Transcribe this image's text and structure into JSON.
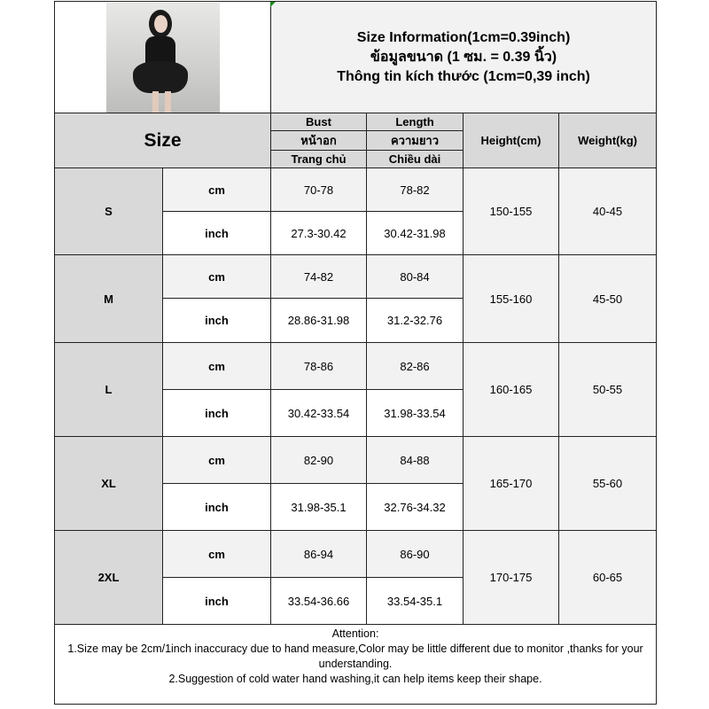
{
  "header": {
    "title_en": "Size Information(1cm=0.39inch)",
    "title_th": "ข้อมูลขนาด (1 ซม. = 0.39 นิ้ว)",
    "title_vi": "Thông tin kích thước (1cm=0,39 inch)"
  },
  "columns": {
    "size": "Size",
    "bust": [
      "Bust",
      "หน้าอก",
      "Trang chủ"
    ],
    "length": [
      "Length",
      "ความยาว",
      "Chiều dài"
    ],
    "height": "Height(cm)",
    "weight": "Weight(kg)"
  },
  "rows": [
    {
      "size": "S",
      "cm_label": "cm",
      "inch_label": "inch",
      "bust_cm": "70-78",
      "length_cm": "78-82",
      "bust_inch": "27.3-30.42",
      "length_inch": "30.42-31.98",
      "height": "150-155",
      "weight": "40-45"
    },
    {
      "size": "M",
      "cm_label": "cm",
      "inch_label": "inch",
      "bust_cm": "74-82",
      "length_cm": "80-84",
      "bust_inch": "28.86-31.98",
      "length_inch": "31.2-32.76",
      "height": "155-160",
      "weight": "45-50"
    },
    {
      "size": "L",
      "cm_label": "cm",
      "inch_label": "inch",
      "bust_cm": "78-86",
      "length_cm": "82-86",
      "bust_inch": "30.42-33.54",
      "length_inch": "31.98-33.54",
      "height": "160-165",
      "weight": "50-55"
    },
    {
      "size": "XL",
      "cm_label": "cm",
      "inch_label": "inch",
      "bust_cm": "82-90",
      "length_cm": "84-88",
      "bust_inch": "31.98-35.1",
      "length_inch": "32.76-34.32",
      "height": "165-170",
      "weight": "55-60"
    },
    {
      "size": "2XL",
      "cm_label": "cm",
      "inch_label": "inch",
      "bust_cm": "86-94",
      "length_cm": "86-90",
      "bust_inch": "33.54-36.66",
      "length_inch": "33.54-35.1",
      "height": "170-175",
      "weight": "60-65"
    }
  ],
  "attention": {
    "title": "Attention:",
    "line1": "1.Size may be 2cm/1inch inaccuracy due to hand measure,Color may be little different due to monitor ,thanks for your understanding.",
    "line2": "2.Suggestion of cold water hand washing,it can help items keep their shape."
  },
  "colors": {
    "header_gray": "#d9d9d9",
    "light_gray": "#f2f2f2",
    "border": "#222222"
  }
}
